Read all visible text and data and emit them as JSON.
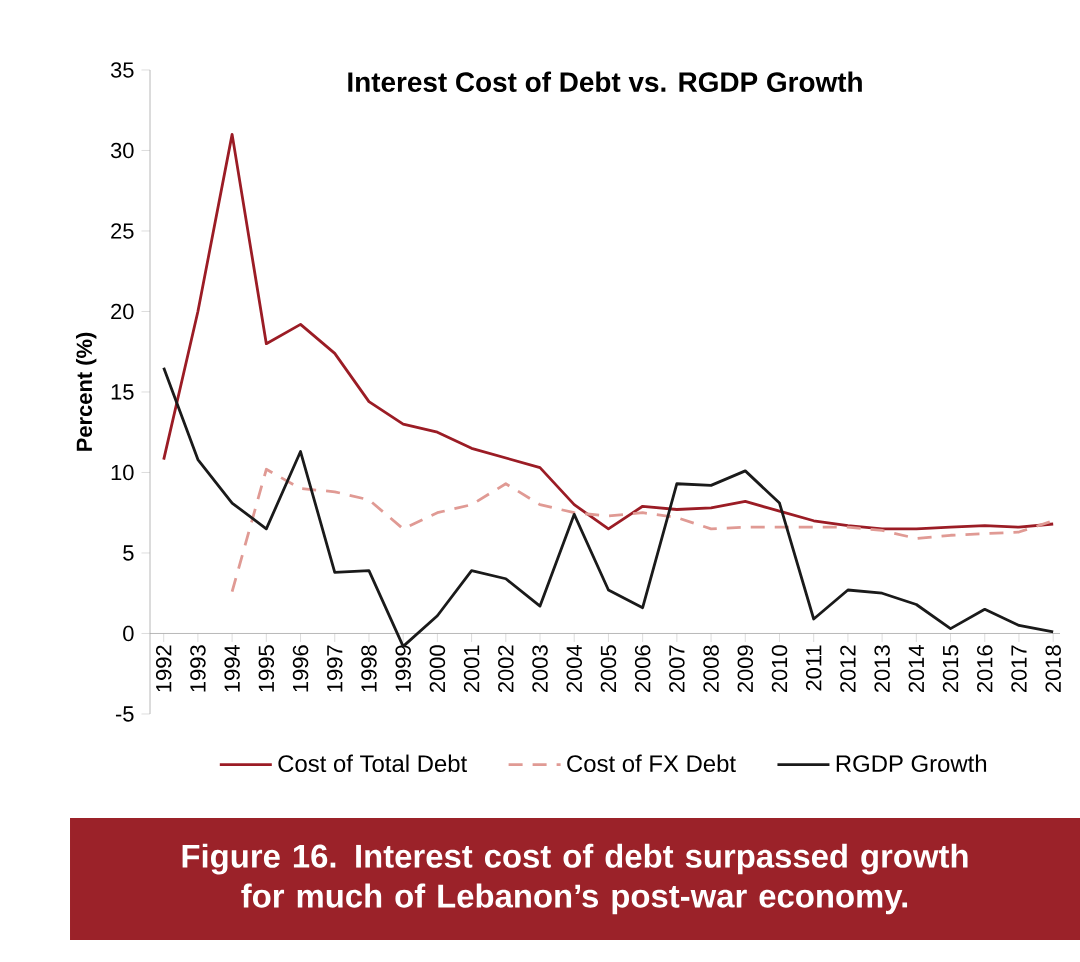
{
  "chart_data": {
    "type": "line",
    "title": "Interest Cost of  Debt vs. RGDP Growth",
    "ylabel": "Percent (%)",
    "categories": [
      "1992",
      "1993",
      "1994",
      "1995",
      "1996",
      "1997",
      "1998",
      "1999",
      "2000",
      "2001",
      "2002",
      "2003",
      "2004",
      "2005",
      "2006",
      "2007",
      "2008",
      "2009",
      "2010",
      "2011",
      "2012",
      "2013",
      "2014",
      "2015",
      "2016",
      "2017",
      "2018"
    ],
    "series": [
      {
        "name": "Cost of Total Debt",
        "color": "#9b1c25",
        "line_style": "solid",
        "values": [
          10.8,
          20,
          31,
          18,
          19.2,
          17.4,
          14.4,
          13,
          12.5,
          11.5,
          10.9,
          10.3,
          8,
          6.5,
          7.9,
          7.7,
          7.8,
          8.2,
          7.6,
          7.0,
          6.7,
          6.5,
          6.5,
          6.6,
          6.7,
          6.6,
          6.8
        ]
      },
      {
        "name": "Cost of FX Debt",
        "color": "#e09a94",
        "line_style": "dashed",
        "values": [
          null,
          null,
          2.6,
          10.2,
          9,
          8.8,
          8.3,
          6.5,
          7.5,
          8,
          9.3,
          8,
          7.5,
          7.3,
          7.5,
          7.2,
          6.5,
          6.6,
          6.6,
          6.6,
          6.6,
          6.4,
          5.9,
          6.1,
          6.2,
          6.3,
          7
        ]
      },
      {
        "name": "RGDP Growth",
        "color": "#1a1a1a",
        "line_style": "solid",
        "values": [
          16.5,
          10.8,
          8.1,
          6.5,
          11.3,
          3.8,
          3.9,
          -0.8,
          1.1,
          3.9,
          3.4,
          1.7,
          7.4,
          2.7,
          1.6,
          9.3,
          9.2,
          10.1,
          8.1,
          0.9,
          2.7,
          2.5,
          1.8,
          0.3,
          1.5,
          0.5,
          0.1
        ]
      }
    ],
    "ylim": [
      -5,
      35
    ],
    "yticks": [
      -5,
      0,
      5,
      10,
      15,
      20,
      25,
      30,
      35
    ],
    "grid": false,
    "legend": "bottom",
    "marker": "none",
    "annotations": [
      "Figure 16. Interest cost of debt surpassed growth for much of Lebanon’s post-war economy."
    ]
  }
}
